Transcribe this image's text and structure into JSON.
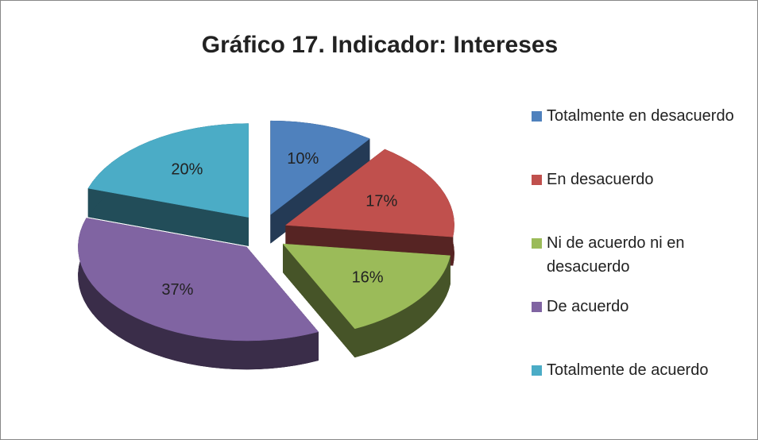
{
  "chart_data": {
    "type": "pie",
    "title": "Gráfico 17. Indicador: Intereses",
    "categories": [
      "Totalmente en desacuerdo",
      "En desacuerdo",
      "Ni de acuerdo ni en desacuerdo",
      "De acuerdo",
      "Totalmente de acuerdo"
    ],
    "values": [
      10,
      17,
      16,
      37,
      20
    ],
    "value_labels": [
      "10%",
      "17%",
      "16%",
      "37%",
      "20%"
    ],
    "colors": [
      "#4f81bd",
      "#c0504d",
      "#9bbb59",
      "#8064a2",
      "#4bacc6"
    ],
    "legend": "right"
  }
}
